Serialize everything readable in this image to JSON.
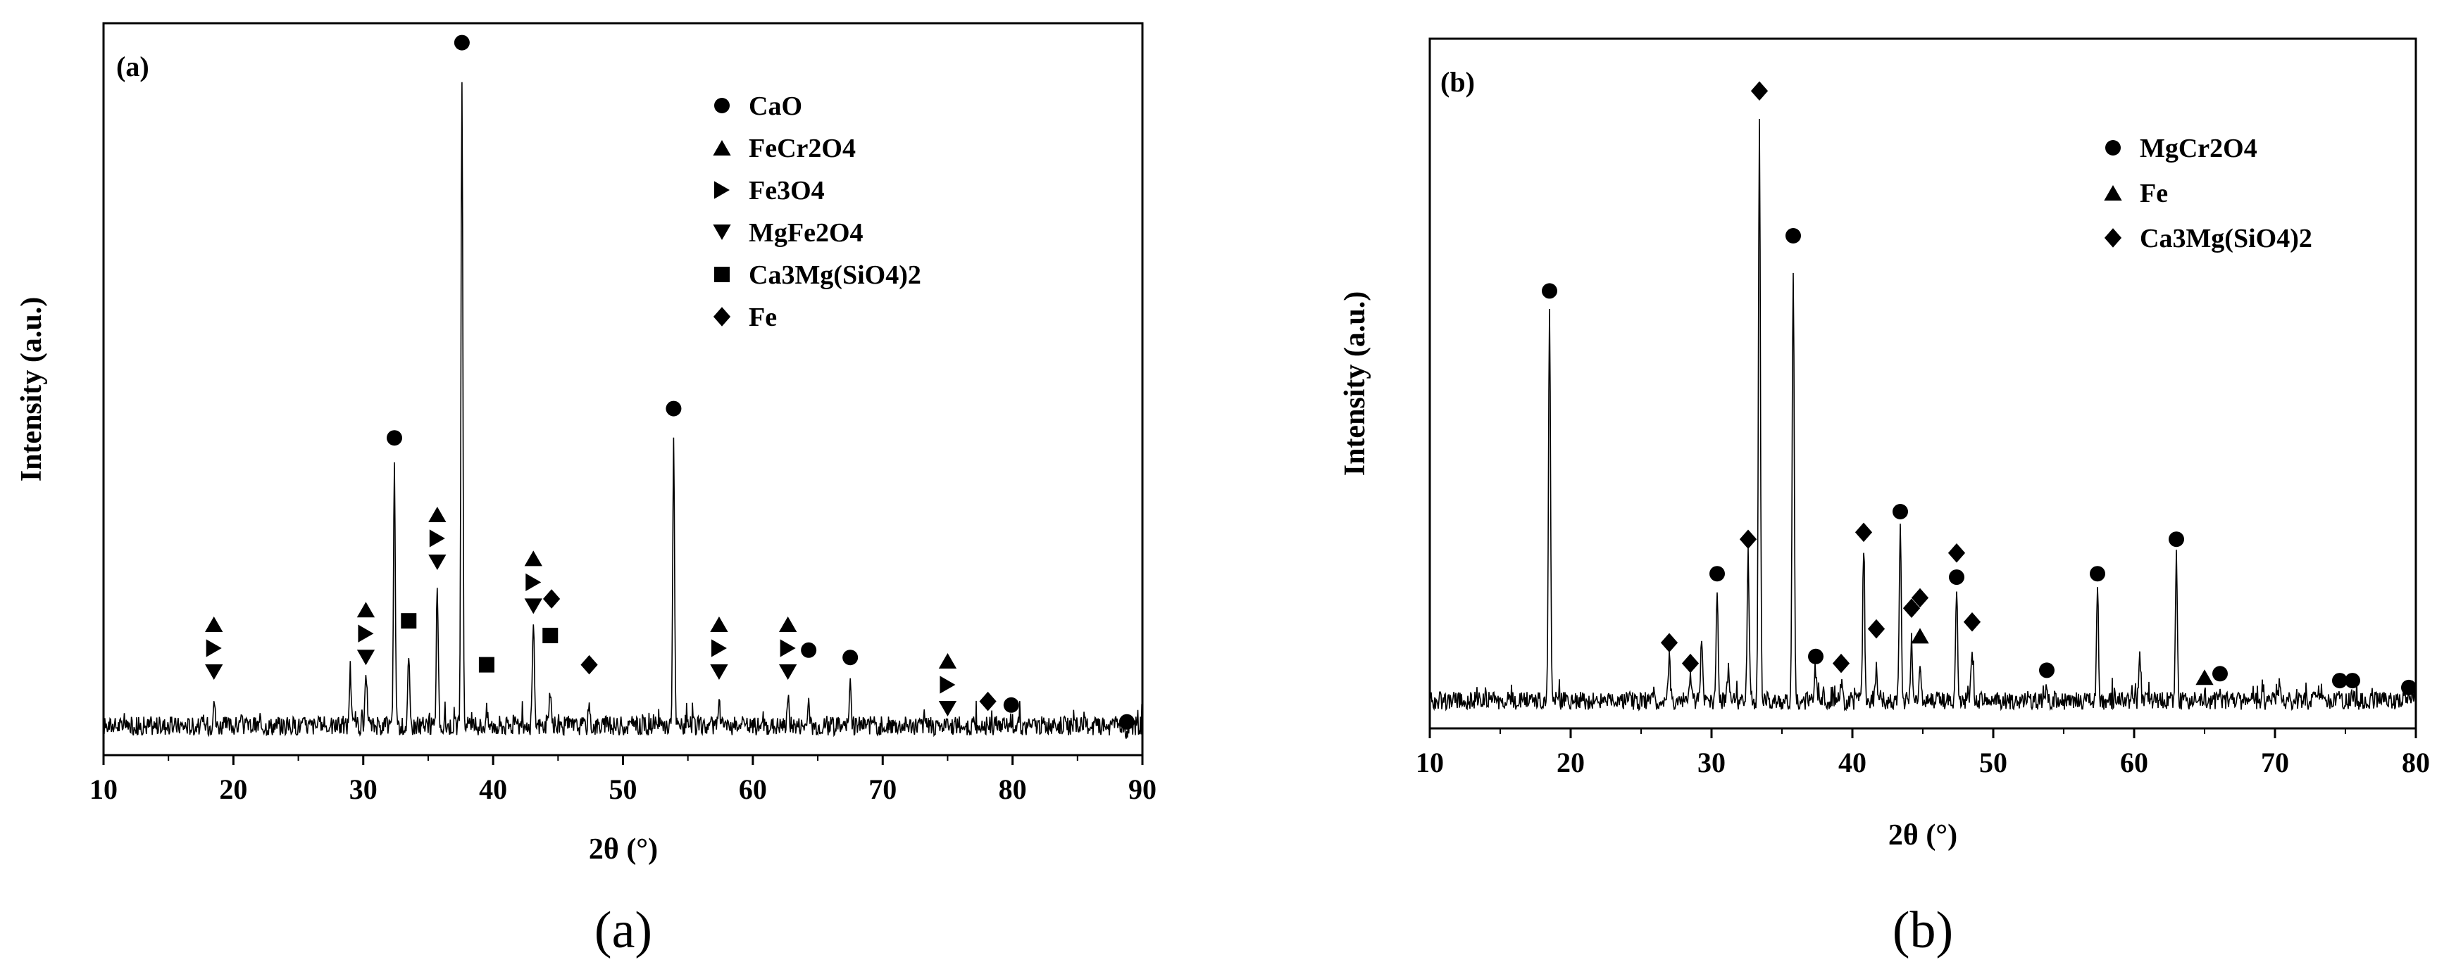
{
  "chart_data": [
    {
      "type": "line",
      "panel_label": "(a)",
      "caption": "(a)",
      "xlabel": "2θ (°)",
      "ylabel": "Intensity (a.u.)",
      "xlim": [
        10,
        90
      ],
      "xticks": [
        10,
        20,
        30,
        40,
        50,
        60,
        70,
        80,
        90
      ],
      "ylim": [
        0,
        100
      ],
      "legend_position": "top-right",
      "legend": [
        {
          "name": "CaO",
          "marker": "circle"
        },
        {
          "name": "FeCr2O4",
          "marker": "triangle-up"
        },
        {
          "name": "Fe3O4",
          "marker": "triangle-right"
        },
        {
          "name": "MgFe2O4",
          "marker": "triangle-down"
        },
        {
          "name": "Ca3Mg(SiO4)2",
          "marker": "square"
        },
        {
          "name": "Fe",
          "marker": "diamond"
        }
      ],
      "baseline": 4,
      "peaks": [
        {
          "x": 18.5,
          "y": 8
        },
        {
          "x": 29.0,
          "y": 12
        },
        {
          "x": 30.2,
          "y": 10
        },
        {
          "x": 32.4,
          "y": 39
        },
        {
          "x": 33.5,
          "y": 13
        },
        {
          "x": 35.7,
          "y": 24
        },
        {
          "x": 37.6,
          "y": 93
        },
        {
          "x": 39.5,
          "y": 6
        },
        {
          "x": 43.1,
          "y": 18
        },
        {
          "x": 44.4,
          "y": 9
        },
        {
          "x": 47.4,
          "y": 7
        },
        {
          "x": 53.9,
          "y": 43
        },
        {
          "x": 57.4,
          "y": 7
        },
        {
          "x": 62.7,
          "y": 8
        },
        {
          "x": 64.3,
          "y": 7
        },
        {
          "x": 67.5,
          "y": 10
        },
        {
          "x": 75.0,
          "y": 4
        },
        {
          "x": 79.9,
          "y": 5
        },
        {
          "x": 88.8,
          "y": 3
        }
      ],
      "markers": [
        {
          "x": 37.6,
          "y": 96,
          "phases": [
            "circle"
          ]
        },
        {
          "x": 32.4,
          "y": 42,
          "phases": [
            "circle"
          ]
        },
        {
          "x": 53.9,
          "y": 46,
          "phases": [
            "circle"
          ]
        },
        {
          "x": 64.3,
          "y": 13,
          "phases": [
            "circle"
          ]
        },
        {
          "x": 67.5,
          "y": 12,
          "phases": [
            "circle"
          ]
        },
        {
          "x": 79.9,
          "y": 5.5,
          "phases": [
            "circle"
          ]
        },
        {
          "x": 88.8,
          "y": 3.2,
          "phases": [
            "circle"
          ]
        },
        {
          "x": 18.5,
          "y": 10,
          "phases": [
            "triangle-up",
            "triangle-right",
            "triangle-down"
          ]
        },
        {
          "x": 30.2,
          "y": 12,
          "phases": [
            "triangle-up",
            "triangle-right",
            "triangle-down"
          ]
        },
        {
          "x": 35.7,
          "y": 25,
          "phases": [
            "triangle-up",
            "triangle-right",
            "triangle-down"
          ]
        },
        {
          "x": 43.1,
          "y": 19,
          "phases": [
            "triangle-up",
            "triangle-right",
            "triangle-down"
          ]
        },
        {
          "x": 57.4,
          "y": 10,
          "phases": [
            "triangle-up",
            "triangle-right",
            "triangle-down"
          ]
        },
        {
          "x": 62.7,
          "y": 10,
          "phases": [
            "triangle-up",
            "triangle-right",
            "triangle-down"
          ]
        },
        {
          "x": 75.0,
          "y": 5,
          "phases": [
            "triangle-up",
            "triangle-right",
            "triangle-down"
          ]
        },
        {
          "x": 33.5,
          "y": 17,
          "phases": [
            "square"
          ]
        },
        {
          "x": 39.5,
          "y": 11,
          "phases": [
            "square"
          ]
        },
        {
          "x": 44.4,
          "y": 15,
          "phases": [
            "square"
          ]
        },
        {
          "x": 44.5,
          "y": 20,
          "phases": [
            "diamond"
          ]
        },
        {
          "x": 47.4,
          "y": 11,
          "phases": [
            "diamond"
          ]
        },
        {
          "x": 78.1,
          "y": 6,
          "phases": [
            "diamond"
          ]
        }
      ]
    },
    {
      "type": "line",
      "panel_label": "(b)",
      "caption": "(b)",
      "xlabel": "2θ (°)",
      "ylabel": "Intensity (a.u.)",
      "xlim": [
        10,
        80
      ],
      "xticks": [
        10,
        20,
        30,
        40,
        50,
        60,
        70,
        80
      ],
      "ylim": [
        0,
        100
      ],
      "legend_position": "top-right",
      "legend": [
        {
          "name": "MgCr2O4",
          "marker": "circle"
        },
        {
          "name": "Fe",
          "marker": "triangle-up"
        },
        {
          "name": "Ca3Mg(SiO4)2",
          "marker": "diamond"
        }
      ],
      "baseline": 4,
      "peaks": [
        {
          "x": 13.3,
          "y": 5
        },
        {
          "x": 18.5,
          "y": 60
        },
        {
          "x": 27.0,
          "y": 10
        },
        {
          "x": 28.5,
          "y": 8
        },
        {
          "x": 29.3,
          "y": 13
        },
        {
          "x": 30.4,
          "y": 20
        },
        {
          "x": 31.2,
          "y": 9
        },
        {
          "x": 32.6,
          "y": 25
        },
        {
          "x": 33.4,
          "y": 88
        },
        {
          "x": 35.8,
          "y": 67
        },
        {
          "x": 37.4,
          "y": 8
        },
        {
          "x": 39.2,
          "y": 7
        },
        {
          "x": 40.8,
          "y": 26
        },
        {
          "x": 41.7,
          "y": 9
        },
        {
          "x": 43.4,
          "y": 29
        },
        {
          "x": 44.2,
          "y": 13
        },
        {
          "x": 44.8,
          "y": 10
        },
        {
          "x": 47.4,
          "y": 20
        },
        {
          "x": 48.5,
          "y": 12
        },
        {
          "x": 53.8,
          "y": 6
        },
        {
          "x": 57.4,
          "y": 20
        },
        {
          "x": 60.4,
          "y": 11
        },
        {
          "x": 63.0,
          "y": 25
        },
        {
          "x": 65.0,
          "y": 5
        },
        {
          "x": 66.1,
          "y": 5
        },
        {
          "x": 70.3,
          "y": 6
        },
        {
          "x": 74.6,
          "y": 5
        },
        {
          "x": 75.5,
          "y": 5
        },
        {
          "x": 79.5,
          "y": 5
        }
      ],
      "markers": [
        {
          "x": 18.5,
          "y": 62,
          "phases": [
            "circle"
          ]
        },
        {
          "x": 30.4,
          "y": 21,
          "phases": [
            "circle"
          ]
        },
        {
          "x": 35.8,
          "y": 70,
          "phases": [
            "circle"
          ]
        },
        {
          "x": 37.4,
          "y": 9,
          "phases": [
            "circle"
          ]
        },
        {
          "x": 43.4,
          "y": 30,
          "phases": [
            "circle"
          ]
        },
        {
          "x": 47.4,
          "y": 20.5,
          "phases": [
            "circle"
          ]
        },
        {
          "x": 53.8,
          "y": 7,
          "phases": [
            "circle"
          ]
        },
        {
          "x": 57.4,
          "y": 21,
          "phases": [
            "circle"
          ]
        },
        {
          "x": 63.0,
          "y": 26,
          "phases": [
            "circle"
          ]
        },
        {
          "x": 66.1,
          "y": 6.5,
          "phases": [
            "circle"
          ]
        },
        {
          "x": 74.6,
          "y": 5.5,
          "phases": [
            "circle"
          ]
        },
        {
          "x": 75.5,
          "y": 5.5,
          "phases": [
            "circle"
          ]
        },
        {
          "x": 79.5,
          "y": 4.5,
          "phases": [
            "circle"
          ]
        },
        {
          "x": 44.8,
          "y": 12,
          "phases": [
            "triangle-up"
          ]
        },
        {
          "x": 65.0,
          "y": 6,
          "phases": [
            "triangle-up"
          ]
        },
        {
          "x": 33.4,
          "y": 91,
          "phases": [
            "diamond"
          ]
        },
        {
          "x": 27.0,
          "y": 11,
          "phases": [
            "diamond"
          ]
        },
        {
          "x": 28.5,
          "y": 8,
          "phases": [
            "diamond"
          ]
        },
        {
          "x": 32.6,
          "y": 26,
          "phases": [
            "diamond"
          ]
        },
        {
          "x": 39.2,
          "y": 8,
          "phases": [
            "diamond"
          ]
        },
        {
          "x": 40.8,
          "y": 27,
          "phases": [
            "diamond"
          ]
        },
        {
          "x": 41.7,
          "y": 13,
          "phases": [
            "diamond"
          ]
        },
        {
          "x": 44.2,
          "y": 16,
          "phases": [
            "diamond"
          ]
        },
        {
          "x": 44.8,
          "y": 17.5,
          "phases": [
            "diamond"
          ]
        },
        {
          "x": 47.4,
          "y": 24,
          "phases": [
            "diamond"
          ]
        },
        {
          "x": 48.5,
          "y": 14,
          "phases": [
            "diamond"
          ]
        }
      ]
    }
  ]
}
